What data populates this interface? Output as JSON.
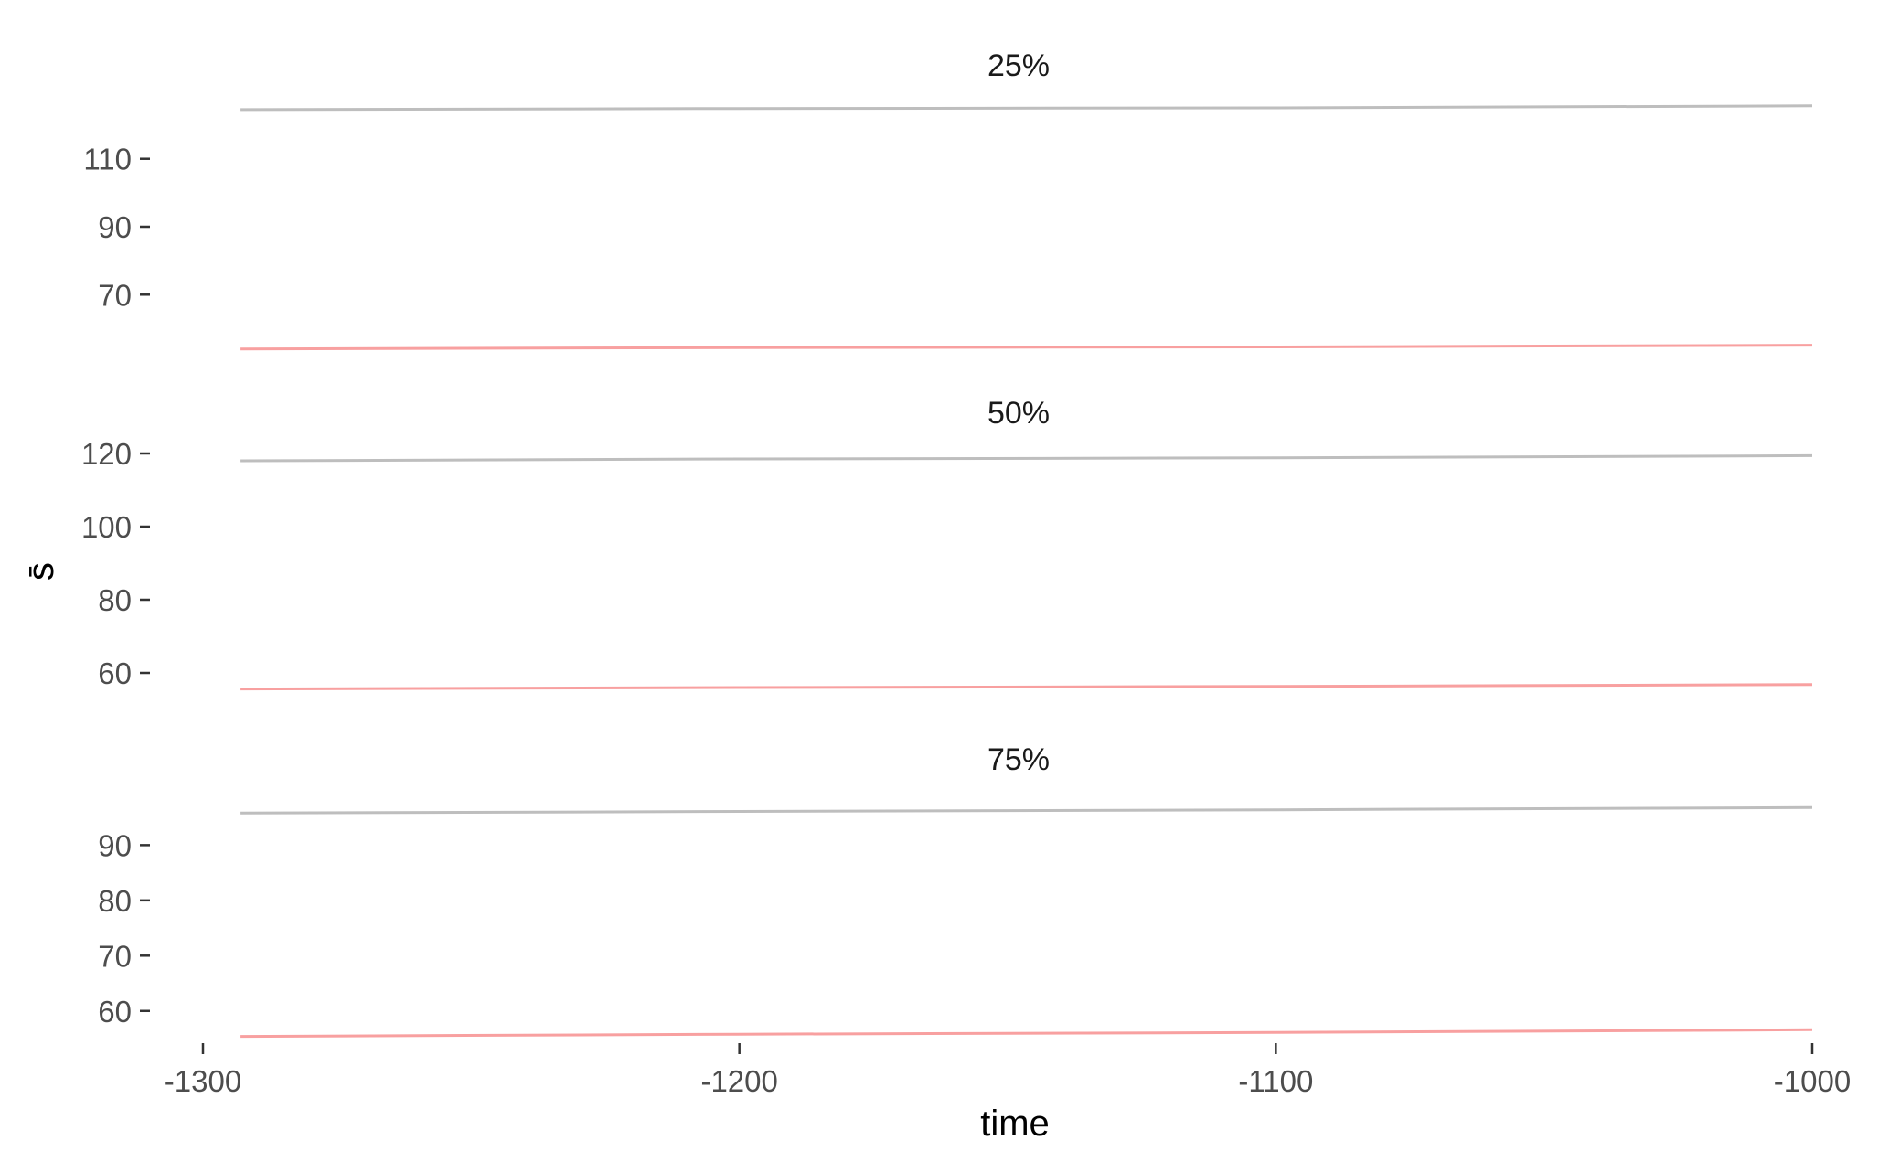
{
  "chart_data": {
    "type": "line",
    "xlabel": "time",
    "ylabel": "s̄",
    "xlim": [
      -1300,
      -1000
    ],
    "x_ticks": [
      -1300,
      -1200,
      -1100,
      -1000
    ],
    "x_tick_labels": [
      "-1300",
      "-1200",
      "-1100",
      "-1000"
    ],
    "grid": false,
    "series_colors": [
      "#bebebe",
      "#f8a0a0"
    ],
    "panels": [
      {
        "title": "25%",
        "ylim": [
          55,
          125
        ],
        "y_ticks": [
          70,
          90,
          110
        ],
        "y_tick_labels": [
          "70",
          "90",
          "110"
        ],
        "series": [
          {
            "x": [
              -1293,
              -1200,
              -1100,
              -1000
            ],
            "values": [
              124.5,
              124.8,
              125.0,
              125.6
            ]
          },
          {
            "x": [
              -1293,
              -1200,
              -1100,
              -1000
            ],
            "values": [
              54.0,
              54.4,
              54.6,
              55.1
            ]
          }
        ]
      },
      {
        "title": "50%",
        "ylim": [
          55,
          120
        ],
        "y_ticks": [
          60,
          80,
          100,
          120
        ],
        "y_tick_labels": [
          "60",
          "80",
          "100",
          "120"
        ],
        "series": [
          {
            "x": [
              -1293,
              -1200,
              -1100,
              -1000
            ],
            "values": [
              118.0,
              118.5,
              118.8,
              119.4
            ]
          },
          {
            "x": [
              -1293,
              -1200,
              -1100,
              -1000
            ],
            "values": [
              55.6,
              56.0,
              56.3,
              56.8
            ]
          }
        ]
      },
      {
        "title": "75%",
        "ylim": [
          55,
          98
        ],
        "y_ticks": [
          60,
          70,
          80,
          90
        ],
        "y_tick_labels": [
          "60",
          "70",
          "80",
          "90"
        ],
        "series": [
          {
            "x": [
              -1293,
              -1200,
              -1100,
              -1000
            ],
            "values": [
              95.8,
              96.1,
              96.4,
              96.8
            ]
          },
          {
            "x": [
              -1293,
              -1200,
              -1100,
              -1000
            ],
            "values": [
              55.4,
              55.8,
              56.1,
              56.6
            ]
          }
        ]
      }
    ]
  }
}
